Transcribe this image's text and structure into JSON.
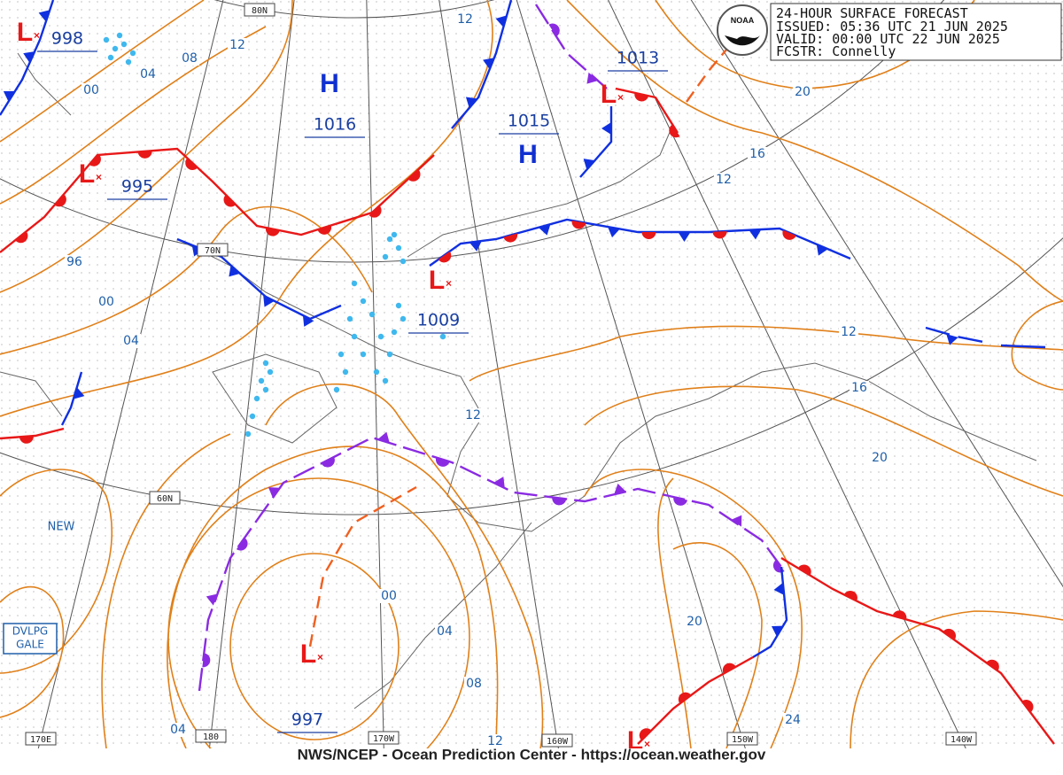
{
  "header": {
    "title": "24-HOUR SURFACE FORECAST",
    "issued": "ISSUED: 05:36 UTC 21 JUN 2025",
    "valid": "VALID:  00:00 UTC 22 JUN 2025",
    "forecaster": "FCSTR:  Connelly"
  },
  "logo": "NOAA",
  "footer": "NWS/NCEP - Ocean Prediction Center - https://ocean.weather.gov",
  "pressure_centers": [
    {
      "symbol": "L",
      "value": "998"
    },
    {
      "symbol": "L",
      "value": "995"
    },
    {
      "symbol": "H",
      "value": "1016"
    },
    {
      "symbol": "H",
      "value": "1015"
    },
    {
      "symbol": "L",
      "value": "1013"
    },
    {
      "symbol": "L",
      "value": "1009"
    },
    {
      "symbol": "L",
      "value": "997"
    },
    {
      "symbol": "L"
    }
  ],
  "isobar_labels": [
    "12",
    "08",
    "12",
    "04",
    "00",
    "96",
    "00",
    "04",
    "20",
    "16",
    "12",
    "12",
    "16",
    "20",
    "12",
    "00",
    "04",
    "08",
    "20",
    "24",
    "04",
    "12"
  ],
  "grid_labels": [
    "80N",
    "70N",
    "60N",
    "170E",
    "180",
    "170W",
    "160W",
    "150W",
    "140W"
  ],
  "annotations": [
    "NEW"
  ],
  "warning": [
    "DVLPG",
    "GALE"
  ]
}
